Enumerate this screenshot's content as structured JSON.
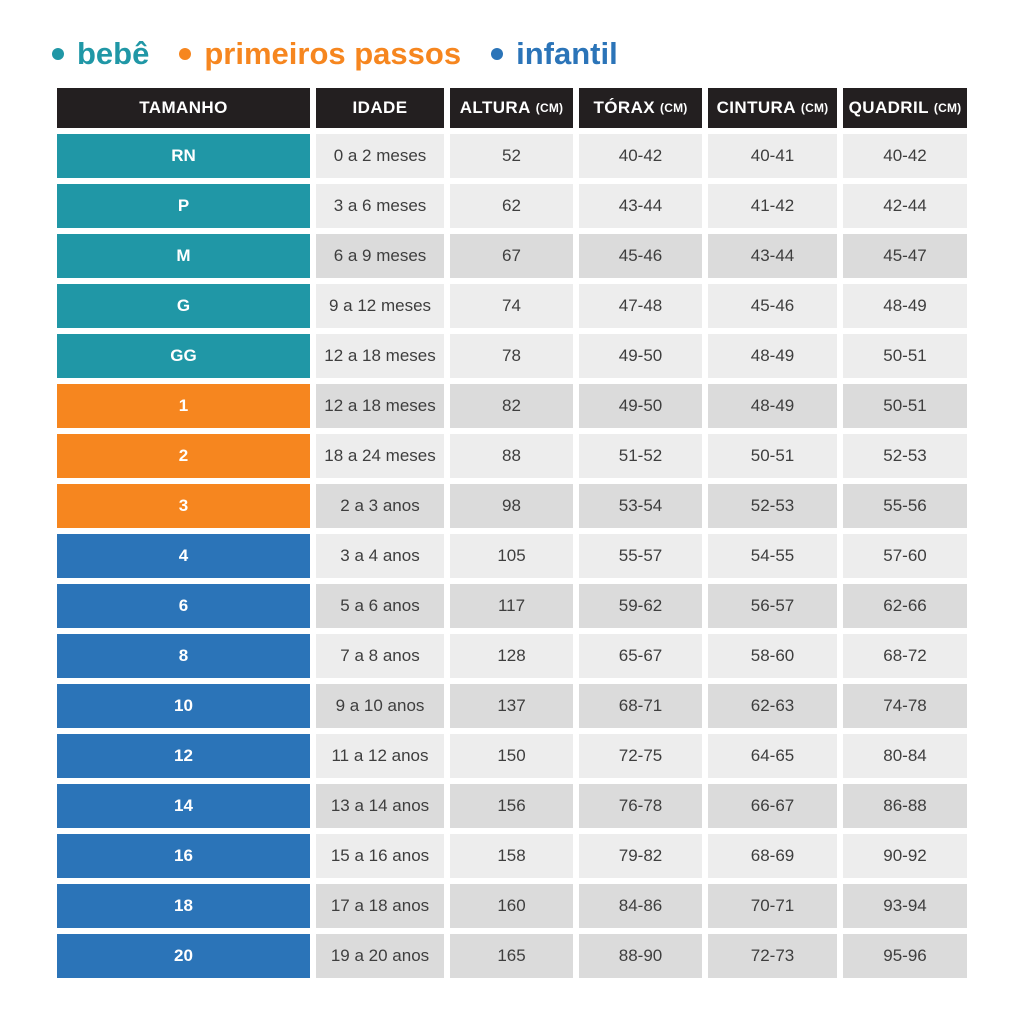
{
  "legend": {
    "items": [
      {
        "id": "bebe",
        "label": "bebê",
        "color": "#2097A6"
      },
      {
        "id": "primeiros-passos",
        "label": "primeiros passos",
        "color": "#F6861F"
      },
      {
        "id": "infantil",
        "label": "infantil",
        "color": "#2B74B8"
      }
    ]
  },
  "colors": {
    "header_bg": "#231F20",
    "header_text": "#FFFFFF",
    "cell_light": "#EDEDED",
    "cell_dark": "#DBDBDB",
    "cell_text": "#3E3E3E",
    "size_text": "#FFFFFF",
    "bebe": "#2097A6",
    "primeiros_passos": "#F6861F",
    "infantil": "#2B74B8",
    "background": "#FFFFFF"
  },
  "chart_data": {
    "type": "table",
    "columns": [
      {
        "key": "tamanho",
        "label": "TAMANHO",
        "unit": ""
      },
      {
        "key": "idade",
        "label": "IDADE",
        "unit": ""
      },
      {
        "key": "altura",
        "label": "ALTURA",
        "unit": "(CM)"
      },
      {
        "key": "torax",
        "label": "TÓRAX",
        "unit": "(CM)"
      },
      {
        "key": "cintura",
        "label": "CINTURA",
        "unit": "(CM)"
      },
      {
        "key": "quadril",
        "label": "QUADRIL",
        "unit": "(CM)"
      }
    ],
    "rows": [
      {
        "tamanho": "RN",
        "group": "bebe",
        "shade": "light",
        "idade": "0 a 2 meses",
        "altura": "52",
        "torax": "40-42",
        "cintura": "40-41",
        "quadril": "40-42"
      },
      {
        "tamanho": "P",
        "group": "bebe",
        "shade": "light",
        "idade": "3 a 6 meses",
        "altura": "62",
        "torax": "43-44",
        "cintura": "41-42",
        "quadril": "42-44"
      },
      {
        "tamanho": "M",
        "group": "bebe",
        "shade": "dark",
        "idade": "6 a 9 meses",
        "altura": "67",
        "torax": "45-46",
        "cintura": "43-44",
        "quadril": "45-47"
      },
      {
        "tamanho": "G",
        "group": "bebe",
        "shade": "light",
        "idade": "9 a 12 meses",
        "altura": "74",
        "torax": "47-48",
        "cintura": "45-46",
        "quadril": "48-49"
      },
      {
        "tamanho": "GG",
        "group": "bebe",
        "shade": "light",
        "idade": "12 a 18 meses",
        "altura": "78",
        "torax": "49-50",
        "cintura": "48-49",
        "quadril": "50-51"
      },
      {
        "tamanho": "1",
        "group": "primeiros_passos",
        "shade": "dark",
        "idade": "12 a 18 meses",
        "altura": "82",
        "torax": "49-50",
        "cintura": "48-49",
        "quadril": "50-51"
      },
      {
        "tamanho": "2",
        "group": "primeiros_passos",
        "shade": "light",
        "idade": "18 a 24 meses",
        "altura": "88",
        "torax": "51-52",
        "cintura": "50-51",
        "quadril": "52-53"
      },
      {
        "tamanho": "3",
        "group": "primeiros_passos",
        "shade": "dark",
        "idade": "2 a 3 anos",
        "altura": "98",
        "torax": "53-54",
        "cintura": "52-53",
        "quadril": "55-56"
      },
      {
        "tamanho": "4",
        "group": "infantil",
        "shade": "light",
        "idade": "3 a 4 anos",
        "altura": "105",
        "torax": "55-57",
        "cintura": "54-55",
        "quadril": "57-60"
      },
      {
        "tamanho": "6",
        "group": "infantil",
        "shade": "dark",
        "idade": "5 a 6 anos",
        "altura": "117",
        "torax": "59-62",
        "cintura": "56-57",
        "quadril": "62-66"
      },
      {
        "tamanho": "8",
        "group": "infantil",
        "shade": "light",
        "idade": "7 a 8 anos",
        "altura": "128",
        "torax": "65-67",
        "cintura": "58-60",
        "quadril": "68-72"
      },
      {
        "tamanho": "10",
        "group": "infantil",
        "shade": "dark",
        "idade": "9 a 10 anos",
        "altura": "137",
        "torax": "68-71",
        "cintura": "62-63",
        "quadril": "74-78"
      },
      {
        "tamanho": "12",
        "group": "infantil",
        "shade": "light",
        "idade": "11 a 12 anos",
        "altura": "150",
        "torax": "72-75",
        "cintura": "64-65",
        "quadril": "80-84"
      },
      {
        "tamanho": "14",
        "group": "infantil",
        "shade": "dark",
        "idade": "13 a 14 anos",
        "altura": "156",
        "torax": "76-78",
        "cintura": "66-67",
        "quadril": "86-88"
      },
      {
        "tamanho": "16",
        "group": "infantil",
        "shade": "light",
        "idade": "15 a 16 anos",
        "altura": "158",
        "torax": "79-82",
        "cintura": "68-69",
        "quadril": "90-92"
      },
      {
        "tamanho": "18",
        "group": "infantil",
        "shade": "dark",
        "idade": "17 a 18 anos",
        "altura": "160",
        "torax": "84-86",
        "cintura": "70-71",
        "quadril": "93-94"
      },
      {
        "tamanho": "20",
        "group": "infantil",
        "shade": "dark",
        "idade": "19 a 20 anos",
        "altura": "165",
        "torax": "88-90",
        "cintura": "72-73",
        "quadril": "95-96"
      }
    ]
  }
}
